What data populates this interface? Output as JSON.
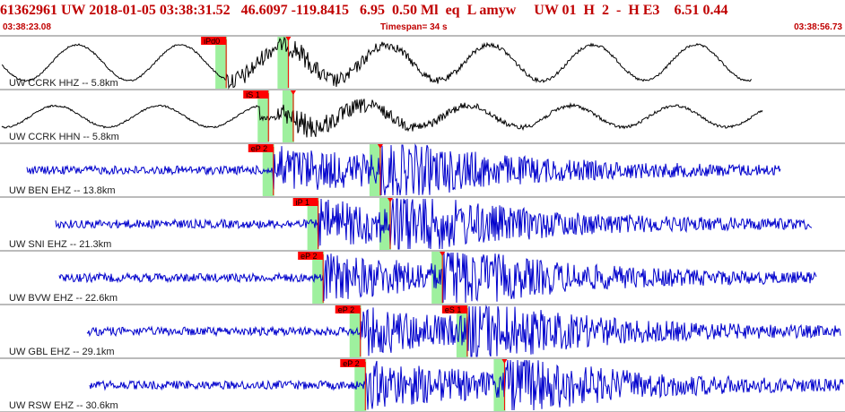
{
  "header": {
    "event_id": "61362961",
    "network": "UW",
    "date": "2018-01-05",
    "time": "03:38:31.52",
    "latitude": "46.6097",
    "longitude": "-119.8415",
    "depth": "6.95",
    "magnitude": "0.50",
    "mag_type": "Ml",
    "event_type": "eq",
    "locate_flag": "L",
    "analyst": "amyw",
    "agency": "UW",
    "code1": "01",
    "code2": "H",
    "code3": "2",
    "code4": "-",
    "code5": "H E3",
    "value1": "6.51",
    "value2": "0.44"
  },
  "timebar": {
    "start_time": "03:38:23.08",
    "timespan": "Timespan=  34 s",
    "end_time": "03:38:56.73"
  },
  "colors": {
    "header_text": "#c00000",
    "trace_broadband": "#000000",
    "trace_short_period": "#0000cc",
    "pick_flag": "#ff0000",
    "pick_window": "#9ef09e",
    "divider": "#777777"
  },
  "traces": [
    {
      "station": "UW CCRK HHZ -- 5.8km",
      "color": "black",
      "picks": [
        {
          "label": "iPd0",
          "time_s": 9.1
        },
        {
          "label": "",
          "time_s": 11.6
        }
      ]
    },
    {
      "station": "UW CCRK HHN -- 5.8km",
      "color": "black",
      "picks": [
        {
          "label": "iS 1",
          "time_s": 10.8
        },
        {
          "label": "",
          "time_s": 11.8
        }
      ]
    },
    {
      "station": "UW BEN EHZ -- 13.8km",
      "color": "blue",
      "picks": [
        {
          "label": "eP 2",
          "time_s": 11.0
        },
        {
          "label": "",
          "time_s": 15.3
        }
      ]
    },
    {
      "station": "UW SNI EHZ -- 21.3km",
      "color": "blue",
      "picks": [
        {
          "label": "iP 1",
          "time_s": 12.8
        },
        {
          "label": "",
          "time_s": 15.7
        }
      ]
    },
    {
      "station": "UW BVW EHZ -- 22.6km",
      "color": "blue",
      "picks": [
        {
          "label": "eP 2",
          "time_s": 13.0
        },
        {
          "label": "",
          "time_s": 17.8
        }
      ]
    },
    {
      "station": "UW GBL EHZ -- 29.1km",
      "color": "blue",
      "picks": [
        {
          "label": "eP 2",
          "time_s": 14.5
        },
        {
          "label": "eS 1",
          "time_s": 18.8
        }
      ]
    },
    {
      "station": "UW RSW EHZ -- 30.6km",
      "color": "blue",
      "picks": [
        {
          "label": "eP 2",
          "time_s": 14.7
        },
        {
          "label": "",
          "time_s": 20.3
        }
      ]
    }
  ]
}
